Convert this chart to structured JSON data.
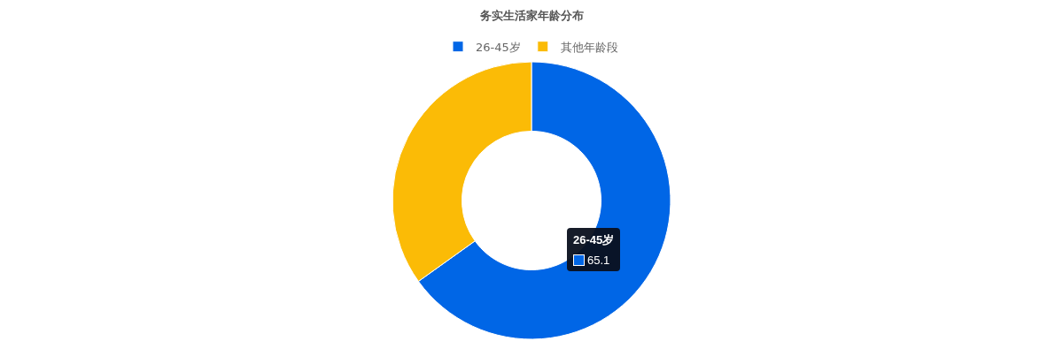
{
  "chart_data": {
    "type": "donut",
    "title": "务实生活家年龄分布",
    "categories": [
      "26-45岁",
      "其他年龄段"
    ],
    "values": [
      65.1,
      34.9
    ],
    "colors": [
      "#0066e6",
      "#fbbb06"
    ],
    "value_labels": [
      "65.1",
      null
    ],
    "legend": "top"
  }
}
